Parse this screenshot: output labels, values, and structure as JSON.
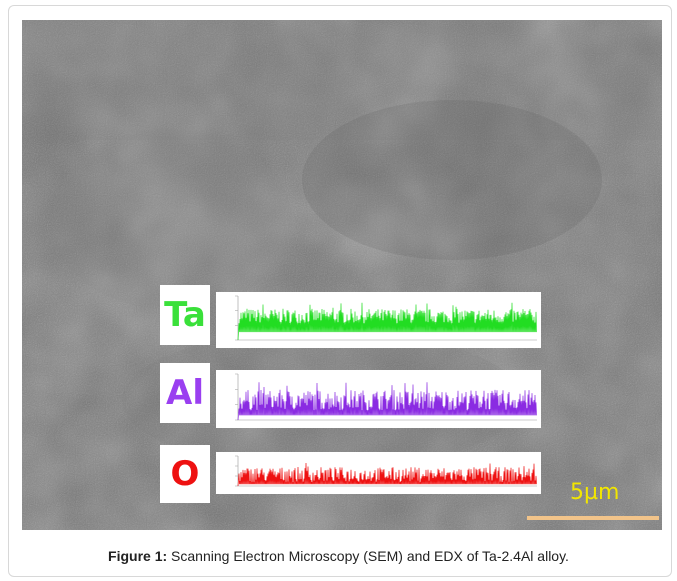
{
  "figure": {
    "caption_label": "Figure 1:",
    "caption_text": " Scanning Electron Microscopy (SEM) and EDX of Ta-2.4Al alloy."
  },
  "sem_image": {
    "scale_bar_label": "5µm",
    "scale_bar_color": "#f2c48a",
    "scale_label_color": "#f2e600"
  },
  "edx_spectra": [
    {
      "element": "Ta",
      "color": "#22dd22"
    },
    {
      "element": "Al",
      "color": "#8a2be2"
    },
    {
      "element": "O",
      "color": "#ee1111"
    }
  ]
}
